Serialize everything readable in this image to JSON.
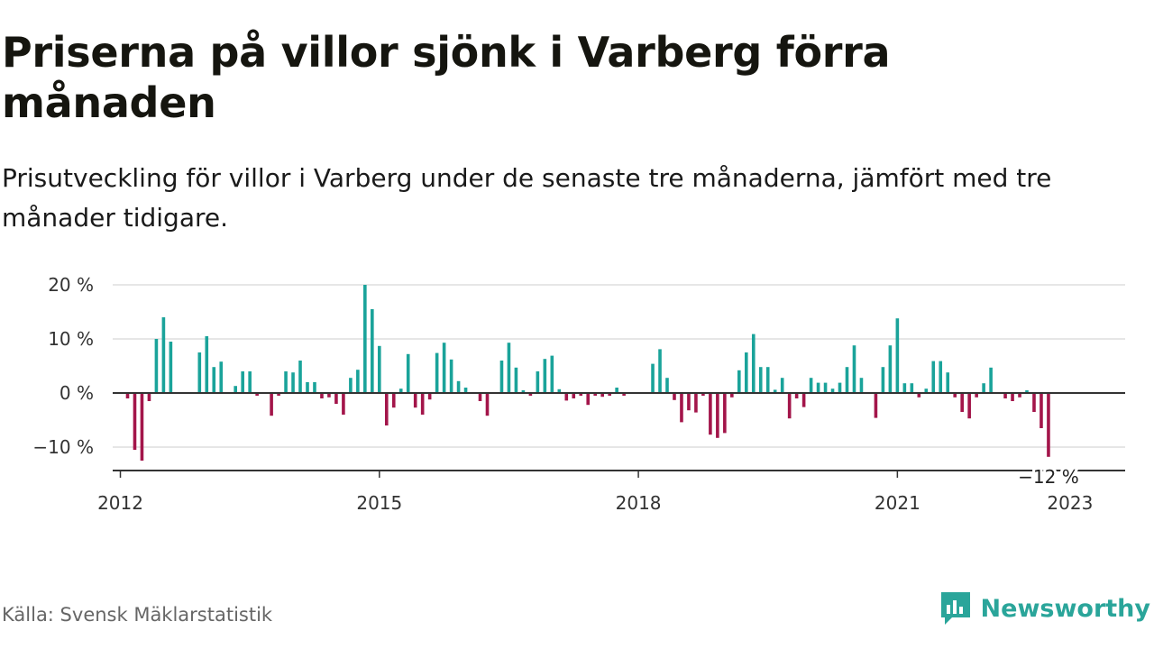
{
  "title": "Priserna på villor sjönk i Varberg förra månaden",
  "subtitle": "Prisutveckling för villor i Varberg under de senaste tre månaderna, jämfört med tre månader tidigare.",
  "source": "Källa: Svensk Mäklarstatistik",
  "brand": {
    "name": "Newsworthy",
    "icon": "newsworthy-logo-icon",
    "color": "#2aa59a"
  },
  "colors": {
    "positive": "#1aa39a",
    "negative": "#a3154a",
    "grid": "#dddddd",
    "axis": "#333333"
  },
  "chart_data": {
    "type": "bar",
    "x_start": "2012-02",
    "x_end": "2023-01",
    "x_ticks": [
      "2012",
      "2015",
      "2018",
      "2021",
      "2023"
    ],
    "y_ticks": [
      "20 %",
      "10 %",
      "0 %",
      "−10 %"
    ],
    "ylim": [
      -14,
      20
    ],
    "grid": true,
    "last_label": "−12 %",
    "values": [
      -1,
      -10.5,
      -12.5,
      -1.5,
      10,
      14,
      9.5,
      null,
      null,
      null,
      7.5,
      10.5,
      4.8,
      5.8,
      null,
      1.3,
      4,
      4,
      -0.5,
      null,
      -4.2,
      -0.5,
      4,
      3.8,
      6,
      2,
      2,
      -1,
      -0.8,
      -2,
      -4,
      2.8,
      4.3,
      20,
      15.5,
      8.7,
      -6,
      -2.7,
      0.8,
      7.2,
      -2.7,
      -4,
      -1.2,
      7.4,
      9.3,
      6.2,
      2.2,
      1,
      null,
      -1.5,
      -4.2,
      null,
      6,
      9.3,
      4.7,
      0.5,
      -0.5,
      4,
      6.3,
      6.9,
      0.7,
      -1.4,
      -1,
      -0.5,
      -2.2,
      -0.5,
      -0.7,
      -0.5,
      1,
      -0.5,
      null,
      null,
      null,
      5.4,
      8.1,
      2.8,
      -1.3,
      -5.4,
      -3.2,
      -3.6,
      -0.5,
      -7.7,
      -8.3,
      -7.4,
      -0.8,
      4.2,
      7.5,
      10.9,
      4.8,
      4.8,
      0.6,
      2.8,
      -4.7,
      -1,
      -2.6,
      2.8,
      1.9,
      1.9,
      0.8,
      1.9,
      4.8,
      8.8,
      2.8,
      null,
      -4.6,
      4.8,
      8.8,
      13.8,
      1.8,
      1.8,
      -0.8,
      0.8,
      5.9,
      5.9,
      3.8,
      -0.8,
      -3.5,
      -4.7,
      -0.8,
      1.8,
      4.7,
      null,
      -1,
      -1.5,
      -0.8,
      0.5,
      -3.5,
      -6.5,
      -11.8
    ]
  }
}
